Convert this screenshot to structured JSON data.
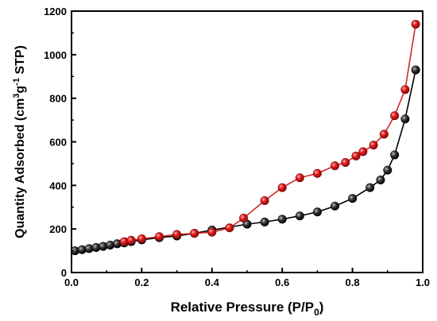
{
  "chart_data": {
    "type": "scatter",
    "title": "",
    "xlabel": "Relative Pressure (P/P",
    "xlabel_sub": "0",
    "xlabel_end": ")",
    "ylabel_parts": [
      "Quantity Adsorbed (cm",
      "3",
      "g",
      "-1",
      " STP)"
    ],
    "xlim": [
      0.0,
      1.0
    ],
    "ylim": [
      0,
      1200
    ],
    "x_ticks": [
      0.0,
      0.2,
      0.4,
      0.6,
      0.8,
      1.0
    ],
    "x_tick_labels": [
      "0.0",
      "0.2",
      "0.4",
      "0.6",
      "0.8",
      "1.0"
    ],
    "y_ticks": [
      0,
      200,
      400,
      600,
      800,
      1000,
      1200
    ],
    "y_tick_labels": [
      "0",
      "200",
      "400",
      "600",
      "800",
      "1000",
      "1200"
    ],
    "grid": false,
    "legend": "none",
    "series": [
      {
        "color": "#e41a1c",
        "line_color": "#cc2a2a",
        "points": [
          [
            0.15,
            142
          ],
          [
            0.17,
            148
          ],
          [
            0.2,
            155
          ],
          [
            0.25,
            165
          ],
          [
            0.3,
            175
          ],
          [
            0.35,
            180
          ],
          [
            0.4,
            185
          ],
          [
            0.45,
            205
          ],
          [
            0.49,
            250
          ],
          [
            0.55,
            330
          ],
          [
            0.6,
            390
          ],
          [
            0.65,
            435
          ],
          [
            0.7,
            455
          ],
          [
            0.75,
            490
          ],
          [
            0.78,
            505
          ],
          [
            0.81,
            535
          ],
          [
            0.83,
            555
          ],
          [
            0.86,
            585
          ],
          [
            0.89,
            635
          ],
          [
            0.92,
            720
          ],
          [
            0.95,
            840
          ],
          [
            0.98,
            1140
          ]
        ]
      },
      {
        "color": "#1a1a1a",
        "line_color": "#000000",
        "points": [
          [
            0.01,
            100
          ],
          [
            0.03,
            105
          ],
          [
            0.05,
            110
          ],
          [
            0.07,
            115
          ],
          [
            0.09,
            120
          ],
          [
            0.11,
            126
          ],
          [
            0.13,
            132
          ],
          [
            0.15,
            136
          ],
          [
            0.17,
            142
          ],
          [
            0.2,
            150
          ],
          [
            0.25,
            160
          ],
          [
            0.3,
            168
          ],
          [
            0.35,
            180
          ],
          [
            0.4,
            195
          ],
          [
            0.5,
            222
          ],
          [
            0.55,
            232
          ],
          [
            0.6,
            245
          ],
          [
            0.65,
            260
          ],
          [
            0.7,
            278
          ],
          [
            0.75,
            305
          ],
          [
            0.8,
            340
          ],
          [
            0.85,
            390
          ],
          [
            0.88,
            425
          ],
          [
            0.9,
            470
          ],
          [
            0.92,
            540
          ],
          [
            0.95,
            705
          ],
          [
            0.98,
            930
          ]
        ]
      }
    ]
  }
}
